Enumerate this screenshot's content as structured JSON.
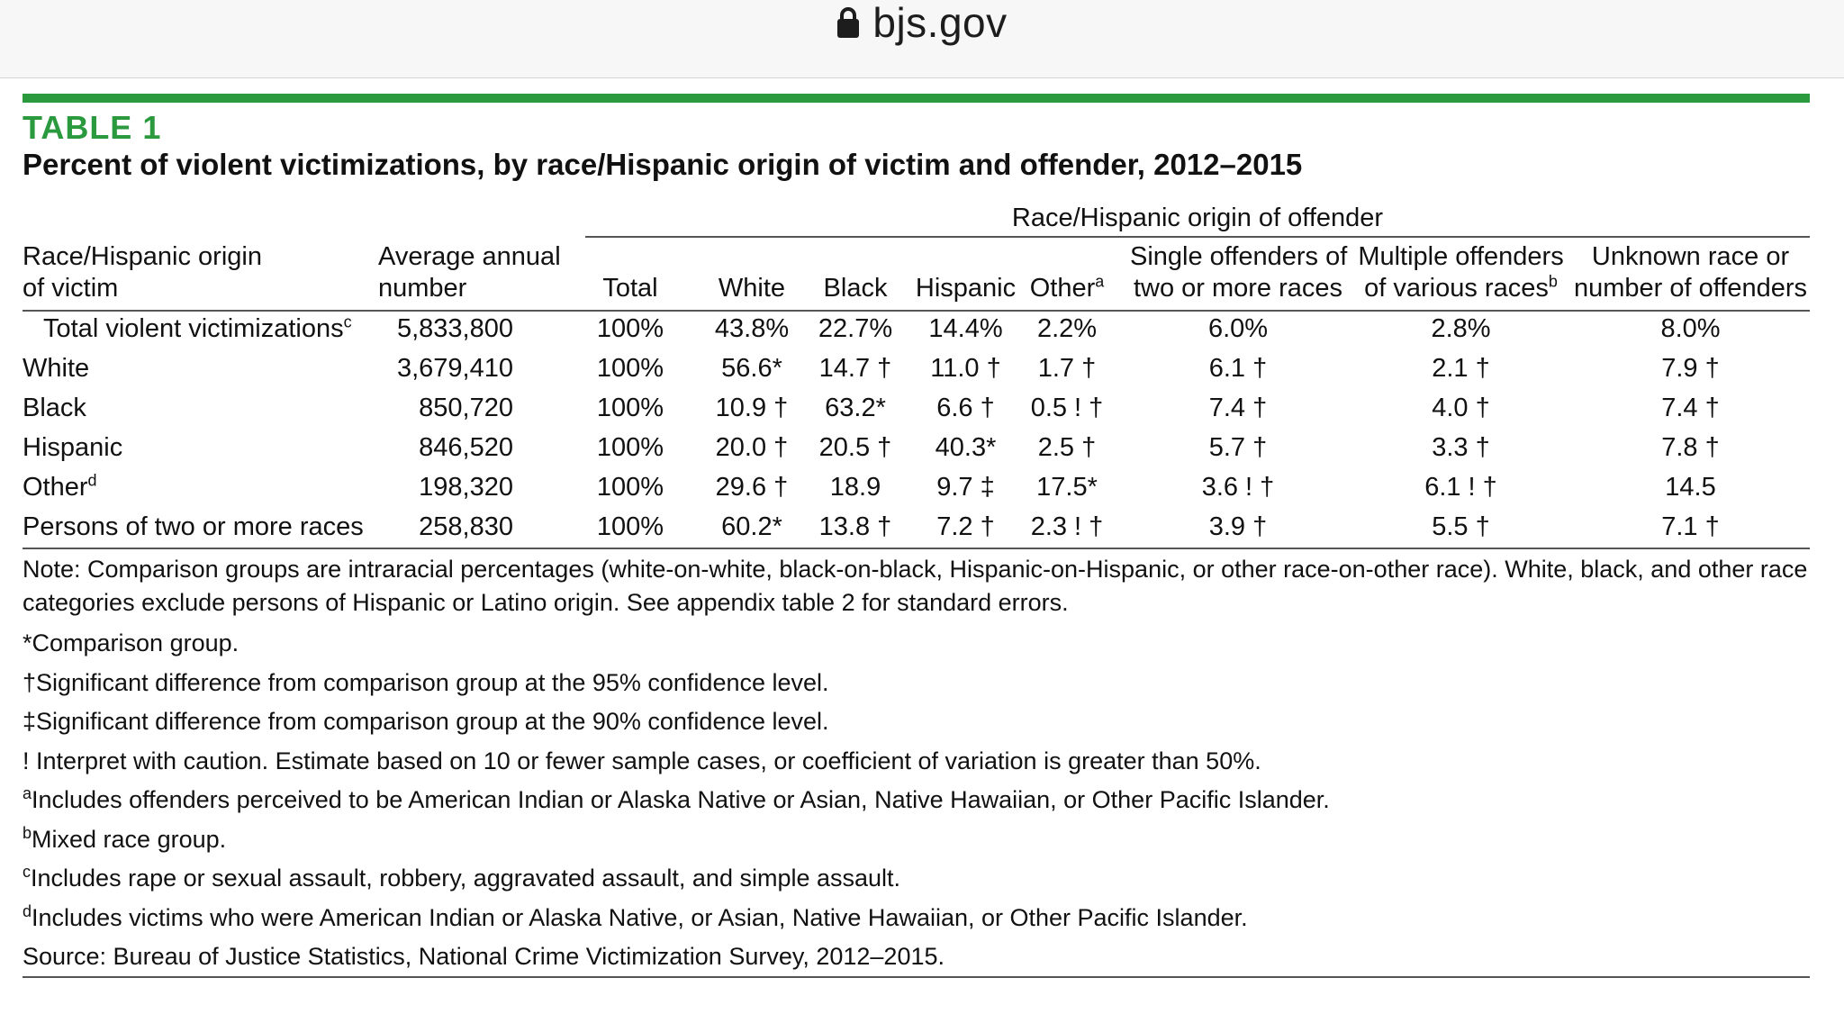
{
  "browser": {
    "domain": "bjs.gov",
    "lock_icon": "lock-icon"
  },
  "table": {
    "label": "TABLE 1",
    "title": "Percent of violent victimizations, by race/Hispanic origin of victim and offender, 2012–2015",
    "group_header": "Race/Hispanic origin of offender",
    "col_victim": [
      "Race/Hispanic origin",
      "of victim"
    ],
    "col_average": [
      "Average annual",
      "number"
    ],
    "col_total": "Total",
    "col_white": "White",
    "col_black": "Black",
    "col_hispanic": "Hispanic",
    "col_other": "Other",
    "col_other_sup": "a",
    "col_single": [
      "Single offenders of",
      "two or more races"
    ],
    "col_multiple": [
      "Multiple offenders",
      "of various races"
    ],
    "col_multiple_sup": "b",
    "col_unknown": [
      "Unknown race or",
      "number of offenders"
    ],
    "rows": [
      {
        "label": "Total violent victimizations",
        "sup": "c",
        "avg": "5,833,800",
        "total": "100%",
        "white": "43.8%",
        "black": "22.7%",
        "hispanic": "14.4%",
        "other": "2.2%",
        "single": "6.0%",
        "multiple": "2.8%",
        "unknown": "8.0%"
      },
      {
        "label": "White",
        "sup": "",
        "avg": "3,679,410",
        "total": "100%",
        "white": "56.6*",
        "black": "14.7 †",
        "hispanic": "11.0 †",
        "other": "1.7 †",
        "single": "6.1 †",
        "multiple": "2.1 †",
        "unknown": "7.9 †"
      },
      {
        "label": "Black",
        "sup": "",
        "avg": "850,720",
        "total": "100%",
        "white": "10.9 †",
        "black": "63.2*",
        "hispanic": "6.6 †",
        "other": "0.5 ! †",
        "single": "7.4 †",
        "multiple": "4.0 †",
        "unknown": "7.4 †"
      },
      {
        "label": "Hispanic",
        "sup": "",
        "avg": "846,520",
        "total": "100%",
        "white": "20.0 †",
        "black": "20.5 †",
        "hispanic": "40.3*",
        "other": "2.5 †",
        "single": "5.7 †",
        "multiple": "3.3 †",
        "unknown": "7.8 †"
      },
      {
        "label": "Other",
        "sup": "d",
        "avg": "198,320",
        "total": "100%",
        "white": "29.6 †",
        "black": "18.9",
        "hispanic": "9.7 ‡",
        "other": "17.5*",
        "single": "3.6 ! †",
        "multiple": "6.1 ! †",
        "unknown": "14.5"
      },
      {
        "label": "Persons of two or more races",
        "sup": "",
        "avg": "258,830",
        "total": "100%",
        "white": "60.2*",
        "black": "13.8 †",
        "hispanic": "7.2 †",
        "other": "2.3 ! †",
        "single": "3.9 †",
        "multiple": "5.5 †",
        "unknown": "7.1 †"
      }
    ]
  },
  "notes": {
    "note": "Note: Comparison groups are intraracial percentages (white-on-white, black-on-black, Hispanic-on-Hispanic, or other race-on-other race). White, black, and other race categories exclude persons of Hispanic or Latino origin. See appendix table 2 for standard errors.",
    "comparison": "*Comparison group.",
    "sig95": "†Significant difference from comparison group at the 95% confidence level.",
    "sig90": "‡Significant difference from comparison group at the 90% confidence level.",
    "caution": "! Interpret with caution. Estimate based on 10 or fewer sample cases, or coefficient of variation is greater than 50%.",
    "fa_mark": "a",
    "fa": "Includes offenders perceived to be American Indian or Alaska Native or Asian, Native Hawaiian, or Other Pacific Islander.",
    "fb_mark": "b",
    "fb": "Mixed race group.",
    "fc_mark": "c",
    "fc": "Includes rape or sexual assault, robbery, aggravated assault, and simple assault.",
    "fd_mark": "d",
    "fd": "Includes victims who were American Indian or Alaska Native, or Asian, Native Hawaiian, or Other Pacific Islander.",
    "source": "Source: Bureau of Justice Statistics, National Crime Victimization Survey, 2012–2015."
  }
}
